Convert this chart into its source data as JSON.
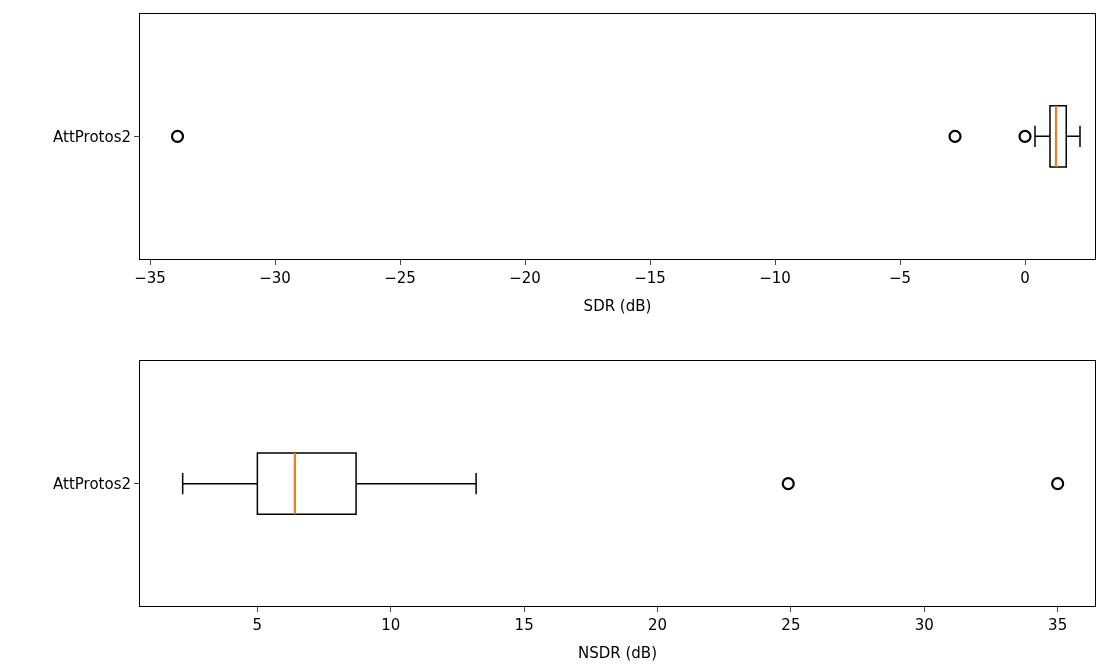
{
  "chart_data": [
    {
      "type": "box",
      "orientation": "horizontal",
      "categories": [
        "AttProtos2"
      ],
      "xlabel": "SDR (dB)",
      "xlim": [
        -35.4,
        2.8
      ],
      "xticks": [
        {
          "value": -35,
          "label": "−35"
        },
        {
          "value": -30,
          "label": "−30"
        },
        {
          "value": -25,
          "label": "−25"
        },
        {
          "value": -20,
          "label": "−20"
        },
        {
          "value": -15,
          "label": "−15"
        },
        {
          "value": -10,
          "label": "−10"
        },
        {
          "value": -5,
          "label": "−5"
        },
        0
      ],
      "color": "#000000",
      "boxes": [
        {
          "low": 0.4,
          "q1": 1.0,
          "median": 1.25,
          "q3": 1.65,
          "high": 2.2,
          "outliers": [
            -33.9,
            -2.8,
            0.0
          ]
        }
      ]
    },
    {
      "type": "box",
      "orientation": "horizontal",
      "categories": [
        "AttProtos2"
      ],
      "xlabel": "NSDR (dB)",
      "xlim": [
        0.6,
        36.4
      ],
      "xticks": [
        5,
        10,
        15,
        20,
        25,
        30,
        35
      ],
      "color": "#000000",
      "boxes": [
        {
          "low": 2.2,
          "q1": 5.0,
          "median": 6.4,
          "q3": 8.7,
          "high": 13.2,
          "outliers": [
            24.9,
            35.0
          ]
        }
      ]
    }
  ]
}
